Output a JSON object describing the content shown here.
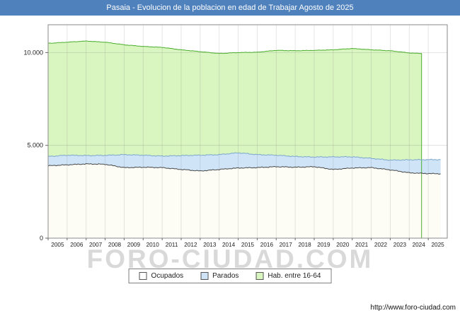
{
  "title_bar": {
    "text": "Pasaia - Evolucion de la poblacion en edad de Trabajar Agosto de 2025",
    "bg": "#4f81bd"
  },
  "watermark": "FORO-CIUDAD.COM",
  "footer": {
    "url": "http://www.foro-ciudad.com"
  },
  "legend": {
    "items": [
      {
        "label": "Ocupados",
        "color": "#ffffff"
      },
      {
        "label": "Parados",
        "color": "#cfe4f7"
      },
      {
        "label": "Hab. entre 16-64",
        "color": "#d9f5c0"
      }
    ]
  },
  "chart_data": {
    "type": "area",
    "title": "Pasaia - Evolucion de la poblacion en edad de Trabajar Agosto de 2025",
    "ylim": [
      0,
      11500
    ],
    "yticks": [
      {
        "value": 0,
        "label": "0"
      },
      {
        "value": 5000,
        "label": "5.000"
      },
      {
        "value": 10000,
        "label": "10.000"
      }
    ],
    "xticks": [
      2005,
      2006,
      2007,
      2008,
      2009,
      2010,
      2011,
      2012,
      2013,
      2014,
      2015,
      2016,
      2017,
      2018,
      2019,
      2020,
      2021,
      2022,
      2023,
      2024,
      2025
    ],
    "grid": true,
    "legend_position": "bottom",
    "series": [
      {
        "name": "Hab. entre 16-64",
        "fill": "#d9f5c0",
        "stroke": "#4caf2e",
        "jitter": 14,
        "drop_end": true,
        "x": [
          2005,
          2006,
          2007,
          2008,
          2009,
          2010,
          2011,
          2012,
          2013,
          2014,
          2015,
          2016,
          2017,
          2018,
          2019,
          2020,
          2021,
          2022,
          2023,
          2024,
          2024.65
        ],
        "values": [
          10500,
          10560,
          10620,
          10560,
          10420,
          10330,
          10280,
          10150,
          10050,
          9950,
          10000,
          10020,
          10120,
          10100,
          10120,
          10150,
          10220,
          10150,
          10100,
          9980,
          9950
        ]
      },
      {
        "name": "Parados",
        "fill": "#cfe4f7",
        "stroke": "#7ba7cc",
        "jitter": 30,
        "stack_on": "Ocupados",
        "x": [
          2005,
          2006,
          2007,
          2008,
          2009,
          2010,
          2011,
          2012,
          2013,
          2014,
          2015,
          2016,
          2017,
          2018,
          2019,
          2020,
          2021,
          2022,
          2023,
          2024,
          2025,
          2025.65
        ],
        "values": [
          500,
          520,
          450,
          480,
          700,
          650,
          620,
          750,
          850,
          800,
          820,
          700,
          620,
          580,
          520,
          680,
          600,
          500,
          520,
          700,
          750,
          760
        ]
      },
      {
        "name": "Ocupados",
        "fill": "#fdfdf6",
        "stroke": "#474747",
        "jitter": 28,
        "x": [
          2005,
          2006,
          2007,
          2008,
          2009,
          2010,
          2011,
          2012,
          2013,
          2014,
          2015,
          2016,
          2017,
          2018,
          2019,
          2020,
          2021,
          2022,
          2023,
          2024,
          2025,
          2025.65
        ],
        "values": [
          3900,
          3950,
          4000,
          3980,
          3800,
          3820,
          3800,
          3700,
          3620,
          3700,
          3780,
          3800,
          3850,
          3820,
          3850,
          3700,
          3780,
          3800,
          3680,
          3520,
          3480,
          3470
        ]
      }
    ]
  }
}
